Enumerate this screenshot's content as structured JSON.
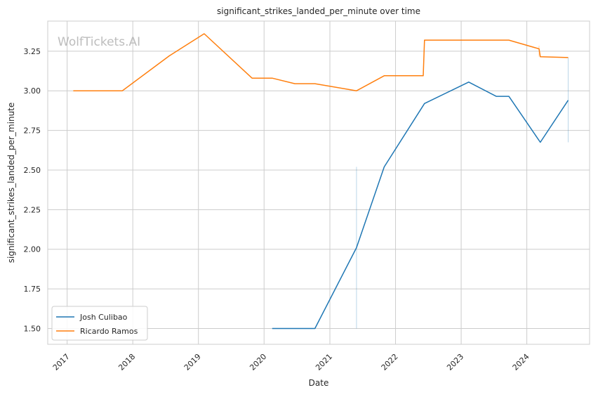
{
  "watermark": "WolfTickets.AI",
  "chart_data": {
    "type": "line",
    "title": "significant_strikes_landed_per_minute over time",
    "xlabel": "Date",
    "ylabel": "significant_strikes_landed_per_minute",
    "x_type": "date",
    "xlim": [
      "2016-09-15",
      "2024-12-15"
    ],
    "ylim": [
      1.4,
      3.44
    ],
    "x_ticks": [
      "2017",
      "2018",
      "2019",
      "2020",
      "2021",
      "2022",
      "2023",
      "2024"
    ],
    "y_ticks": [
      "1.50",
      "1.75",
      "2.00",
      "2.25",
      "2.50",
      "2.75",
      "3.00",
      "3.25"
    ],
    "grid": true,
    "legend_position": "lower-left",
    "series": [
      {
        "name": "Josh Culibao",
        "color": "#1f77b4",
        "points": [
          {
            "x": "2020-02-15",
            "y": 1.5
          },
          {
            "x": "2020-10-10",
            "y": 1.5
          },
          {
            "x": "2021-05-29",
            "y": 2.01
          },
          {
            "x": "2021-10-30",
            "y": 2.52
          },
          {
            "x": "2022-06-11",
            "y": 2.92
          },
          {
            "x": "2023-02-12",
            "y": 3.055
          },
          {
            "x": "2023-07-15",
            "y": 2.965
          },
          {
            "x": "2023-09-23",
            "y": 2.965
          },
          {
            "x": "2024-03-16",
            "y": 2.675
          },
          {
            "x": "2024-08-18",
            "y": 2.94
          }
        ],
        "error_bands": [
          {
            "x": "2021-05-29",
            "low": 1.5,
            "high": 2.52
          },
          {
            "x": "2024-08-18",
            "low": 2.675,
            "high": 3.21
          }
        ]
      },
      {
        "name": "Ricardo Ramos",
        "color": "#ff7f0e",
        "points": [
          {
            "x": "2017-02-04",
            "y": 3.0
          },
          {
            "x": "2017-11-04",
            "y": 3.0
          },
          {
            "x": "2018-07-22",
            "y": 3.22
          },
          {
            "x": "2019-02-02",
            "y": 3.36
          },
          {
            "x": "2019-10-26",
            "y": 3.08
          },
          {
            "x": "2020-02-15",
            "y": 3.08
          },
          {
            "x": "2020-06-20",
            "y": 3.045
          },
          {
            "x": "2020-10-10",
            "y": 3.045
          },
          {
            "x": "2021-05-29",
            "y": 3.0
          },
          {
            "x": "2021-10-30",
            "y": 3.095
          },
          {
            "x": "2022-06-04",
            "y": 3.095
          },
          {
            "x": "2022-06-11",
            "y": 3.32
          },
          {
            "x": "2023-09-23",
            "y": 3.32
          },
          {
            "x": "2024-03-09",
            "y": 3.265
          },
          {
            "x": "2024-03-16",
            "y": 3.215
          },
          {
            "x": "2024-08-18",
            "y": 3.21
          }
        ],
        "error_bands": [
          {
            "x": "2024-03-09",
            "low": 3.215,
            "high": 3.285
          }
        ]
      }
    ]
  }
}
